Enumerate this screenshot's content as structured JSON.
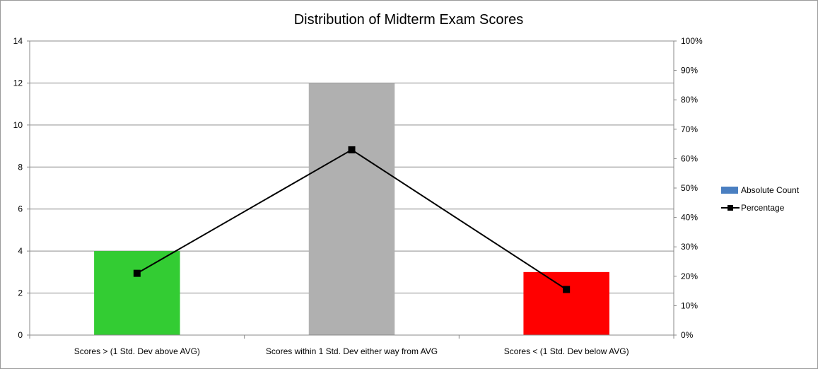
{
  "chart_data": {
    "type": "bar",
    "title": "Distribution of Midterm Exam Scores",
    "categories": [
      "Scores > (1 Std. Dev above AVG)",
      "Scores within 1 Std. Dev either way from AVG",
      "Scores < (1 Std. Dev below AVG)"
    ],
    "series": [
      {
        "name": "Absolute Count",
        "type": "bar",
        "axis": "left",
        "values": [
          4,
          12,
          3
        ],
        "colors": [
          "#33cc33",
          "#b0b0b0",
          "#ff0000"
        ],
        "legend_color": "#4a7fc1"
      },
      {
        "name": "Percentage",
        "type": "line",
        "axis": "right",
        "values": [
          0.21,
          0.63,
          0.155
        ],
        "color": "#000000"
      }
    ],
    "ylim_left": [
      0,
      14
    ],
    "yticks_left": [
      "0",
      "2",
      "4",
      "6",
      "8",
      "10",
      "12",
      "14"
    ],
    "ylim_right": [
      0,
      1
    ],
    "yticks_right": [
      "0%",
      "10%",
      "20%",
      "30%",
      "40%",
      "50%",
      "60%",
      "70%",
      "80%",
      "90%",
      "100%"
    ],
    "grid": true,
    "legend_position": "right"
  }
}
